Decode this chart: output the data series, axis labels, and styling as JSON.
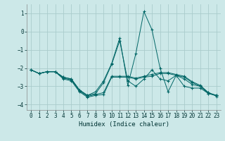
{
  "xlabel": "Humidex (Indice chaleur)",
  "background_color": "#cce8e8",
  "plot_bg_color": "#cce8e8",
  "line_color": "#006666",
  "grid_color": "#aacccc",
  "xlim": [
    -0.5,
    23.5
  ],
  "ylim": [
    -4.3,
    1.5
  ],
  "yticks": [
    -4,
    -3,
    -2,
    -1,
    0,
    1
  ],
  "xticks": [
    0,
    1,
    2,
    3,
    4,
    5,
    6,
    7,
    8,
    9,
    10,
    11,
    12,
    13,
    14,
    15,
    16,
    17,
    18,
    19,
    20,
    21,
    22,
    23
  ],
  "series": [
    [
      -2.1,
      -2.3,
      -2.2,
      -2.2,
      -2.5,
      -2.6,
      -3.2,
      -3.5,
      -3.4,
      -2.8,
      -1.8,
      -0.5,
      -2.7,
      -3.0,
      -2.6,
      -2.1,
      -2.6,
      -2.7,
      -2.4,
      -2.6,
      -2.9,
      -3.0,
      -3.4,
      -3.5
    ],
    [
      -2.1,
      -2.3,
      -2.2,
      -2.2,
      -2.5,
      -2.6,
      -3.2,
      -3.5,
      -3.3,
      -2.7,
      -1.75,
      -0.35,
      -2.95,
      -1.2,
      1.1,
      0.1,
      -2.0,
      -3.3,
      -2.4,
      -3.0,
      -3.1,
      -3.1,
      -3.4,
      -3.5
    ],
    [
      -2.1,
      -2.3,
      -2.2,
      -2.2,
      -2.55,
      -2.65,
      -3.25,
      -3.55,
      -3.45,
      -3.35,
      -2.45,
      -2.45,
      -2.45,
      -2.55,
      -2.45,
      -2.35,
      -2.25,
      -2.25,
      -2.35,
      -2.45,
      -2.75,
      -2.95,
      -3.35,
      -3.5
    ],
    [
      -2.1,
      -2.3,
      -2.2,
      -2.2,
      -2.6,
      -2.7,
      -3.3,
      -3.6,
      -3.5,
      -3.45,
      -2.5,
      -2.5,
      -2.5,
      -2.6,
      -2.5,
      -2.45,
      -2.3,
      -2.3,
      -2.4,
      -2.5,
      -2.8,
      -3.0,
      -3.35,
      -3.55
    ]
  ]
}
